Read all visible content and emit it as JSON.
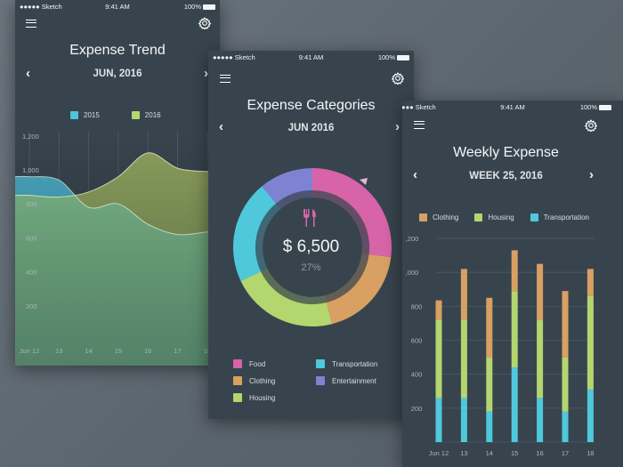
{
  "status_bar": {
    "carrier": "●●●●● Sketch",
    "time": "9:41 AM",
    "battery": "100%"
  },
  "screens": [
    {
      "title": "Expense Trend",
      "period": "JUN, 2016"
    },
    {
      "title": "Expense Categories",
      "period": "JUN 2016",
      "center_amount": "$ 6,500",
      "center_percent": "27%",
      "center_icon": "fork-knife-icon"
    },
    {
      "title": "Weekly Expense",
      "period": "WEEK 25, 2016"
    }
  ],
  "icons": {
    "menu": "hamburger-icon",
    "settings": "gear-icon",
    "prev": "chevron-left-icon",
    "next": "chevron-right-icon"
  },
  "chart_data": [
    {
      "type": "area",
      "title": "Expense Trend",
      "x": [
        "Jun 12",
        "13",
        "14",
        "15",
        "16",
        "17",
        "18"
      ],
      "series": [
        {
          "name": "2015",
          "color": "#4fc3dc",
          "values": [
            960,
            940,
            780,
            800,
            680,
            620,
            635
          ]
        },
        {
          "name": "2016",
          "color": "#b5d86f",
          "values": [
            850,
            840,
            870,
            960,
            1100,
            1010,
            990
          ]
        }
      ],
      "yticks": [
        "1,200",
        "1,000",
        "800",
        "600",
        "400",
        "200"
      ],
      "ylim": [
        0,
        1200
      ],
      "grid": "vertical"
    },
    {
      "type": "pie",
      "variant": "donut",
      "title": "Expense Categories",
      "slices": [
        {
          "name": "Food",
          "value": 27,
          "color": "#d764a8"
        },
        {
          "name": "Clothing",
          "value": 19,
          "color": "#d9a063"
        },
        {
          "name": "Housing",
          "value": 22,
          "color": "#b3d66f"
        },
        {
          "name": "Transportation",
          "value": 21,
          "color": "#4fc8dc"
        },
        {
          "name": "Entertainment",
          "value": 11,
          "color": "#7f82d3"
        }
      ]
    },
    {
      "type": "bar",
      "stacked": true,
      "title": "Weekly Expense",
      "categories": [
        "Jun 12",
        "13",
        "14",
        "15",
        "16",
        "17",
        "18"
      ],
      "series": [
        {
          "name": "Transportation",
          "color": "#4fc8dc",
          "values": [
            260,
            260,
            180,
            440,
            260,
            180,
            310
          ]
        },
        {
          "name": "Housing",
          "color": "#b3d66f",
          "values": [
            460,
            460,
            320,
            450,
            460,
            320,
            550
          ]
        },
        {
          "name": "Clothing",
          "color": "#d9a063",
          "values": [
            115,
            300,
            350,
            240,
            330,
            390,
            160
          ]
        }
      ],
      "legend_order": [
        "Clothing",
        "Housing",
        "Transportation"
      ],
      "yticks": [
        ",200",
        ",000",
        "800",
        "600",
        "400",
        "200"
      ],
      "ylim": [
        0,
        1200
      ],
      "grid": "horizontal"
    }
  ]
}
